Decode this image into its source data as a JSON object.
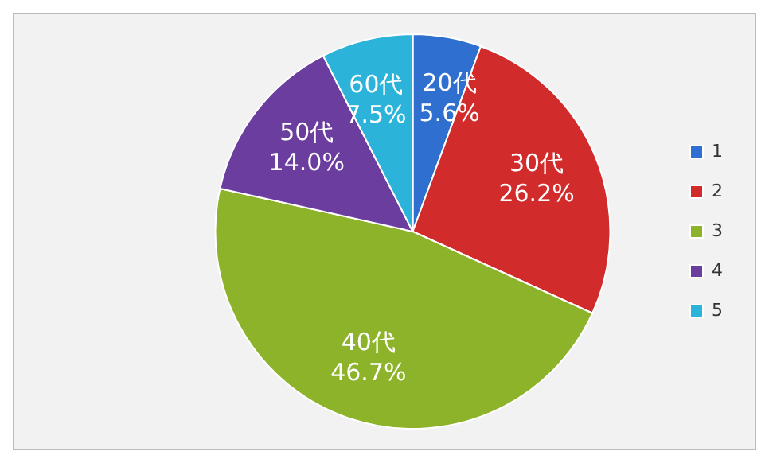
{
  "chart_data": {
    "type": "pie",
    "categories": [
      "1",
      "2",
      "3",
      "4",
      "5"
    ],
    "values": [
      5.6,
      26.2,
      46.7,
      14.0,
      7.5
    ],
    "colors": [
      "#2e6fcf",
      "#d12b2b",
      "#8db32b",
      "#6b3d9e",
      "#2bb3da"
    ],
    "value_labels": [
      "20代\n5.6%",
      "30代\n26.2%",
      "40代\n46.7%",
      "50代\n14.0%",
      "60代\n7.5%"
    ],
    "legend": "right"
  }
}
